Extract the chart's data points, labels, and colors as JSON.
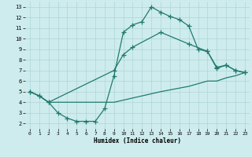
{
  "bg_color": "#ceeced",
  "grid_color": "#aed4d5",
  "line_color": "#217a70",
  "xlabel": "Humidex (Indice chaleur)",
  "xlim": [
    -0.5,
    23.5
  ],
  "ylim": [
    1.5,
    13.5
  ],
  "xticks": [
    0,
    1,
    2,
    3,
    4,
    5,
    6,
    7,
    8,
    9,
    10,
    11,
    12,
    13,
    14,
    15,
    16,
    17,
    18,
    19,
    20,
    21,
    22,
    23
  ],
  "yticks": [
    2,
    3,
    4,
    5,
    6,
    7,
    8,
    9,
    10,
    11,
    12,
    13
  ],
  "curve1_x": [
    0,
    1,
    2,
    3,
    4,
    5,
    6,
    7,
    8,
    9,
    10,
    11,
    12,
    13,
    14,
    15,
    16,
    17,
    18,
    19,
    20,
    21,
    22,
    23
  ],
  "curve1_y": [
    5,
    4.6,
    4.0,
    3.0,
    2.5,
    2.2,
    2.2,
    2.2,
    3.4,
    6.5,
    10.6,
    11.3,
    11.6,
    13.0,
    12.5,
    12.1,
    11.8,
    11.2,
    9.0,
    8.8,
    7.3,
    7.5,
    7.0,
    6.8
  ],
  "curve2_x": [
    0,
    1,
    2,
    9,
    10,
    11,
    14,
    17,
    19,
    20,
    21,
    22,
    23
  ],
  "curve2_y": [
    5,
    4.6,
    4.0,
    7.0,
    8.5,
    9.2,
    10.6,
    9.5,
    8.8,
    7.2,
    7.5,
    7.0,
    6.8
  ],
  "curve3_x": [
    0,
    1,
    2,
    9,
    14,
    17,
    19,
    20,
    21,
    22,
    23
  ],
  "curve3_y": [
    5,
    4.6,
    4.0,
    4.0,
    5.0,
    5.5,
    6.0,
    6.0,
    6.3,
    6.5,
    6.8
  ]
}
